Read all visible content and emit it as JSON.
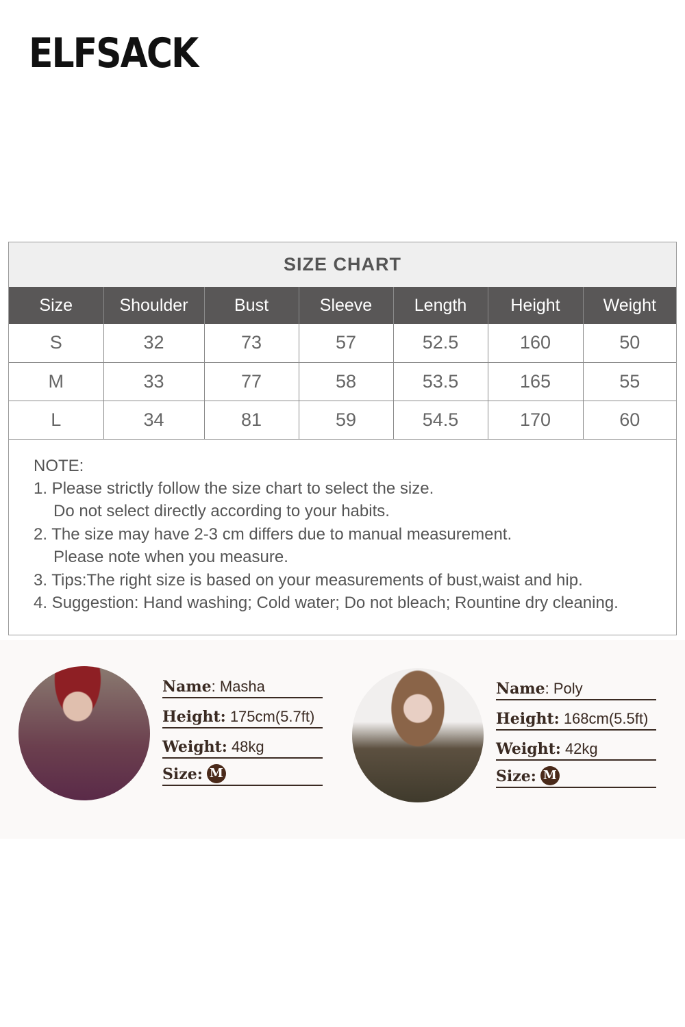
{
  "brand": {
    "logo": "ELFSACK"
  },
  "size_chart": {
    "title": "SIZE CHART",
    "headers": [
      "Size",
      "Shoulder",
      "Bust",
      "Sleeve",
      "Length",
      "Height",
      "Weight"
    ],
    "rows": [
      [
        "S",
        "32",
        "73",
        "57",
        "52.5",
        "160",
        "50"
      ],
      [
        "M",
        "33",
        "77",
        "58",
        "53.5",
        "165",
        "55"
      ],
      [
        "L",
        "34",
        "81",
        "59",
        "54.5",
        "170",
        "60"
      ]
    ]
  },
  "notes": {
    "heading": "NOTE:",
    "lines": [
      "1. Please strictly follow the size chart to select the size.",
      "Do not select directly according to your habits.",
      "2. The size may have 2-3 cm differs due to manual measurement.",
      "Please note when you measure.",
      "3. Tips:The right size is based on your measurements of bust,waist and hip.",
      "4. Suggestion: Hand washing; Cold water; Do not bleach; Rountine dry cleaning."
    ]
  },
  "models": [
    {
      "name_label": "Name",
      "name": ": Masha",
      "height_label": "Height:",
      "height": "175cm(5.7ft)",
      "weight_label": "Weight:",
      "weight": "48kg",
      "size_label": "Size:",
      "size": "M"
    },
    {
      "name_label": "Name",
      "name": ": Poly",
      "height_label": "Height:",
      "height": "168cm(5.5ft)",
      "weight_label": "Weight:",
      "weight": "42kg",
      "size_label": "Size:",
      "size": "M"
    }
  ],
  "colors": {
    "header_bg": "#595757",
    "title_bg": "#efefef",
    "badge": "#4a2a1a"
  }
}
